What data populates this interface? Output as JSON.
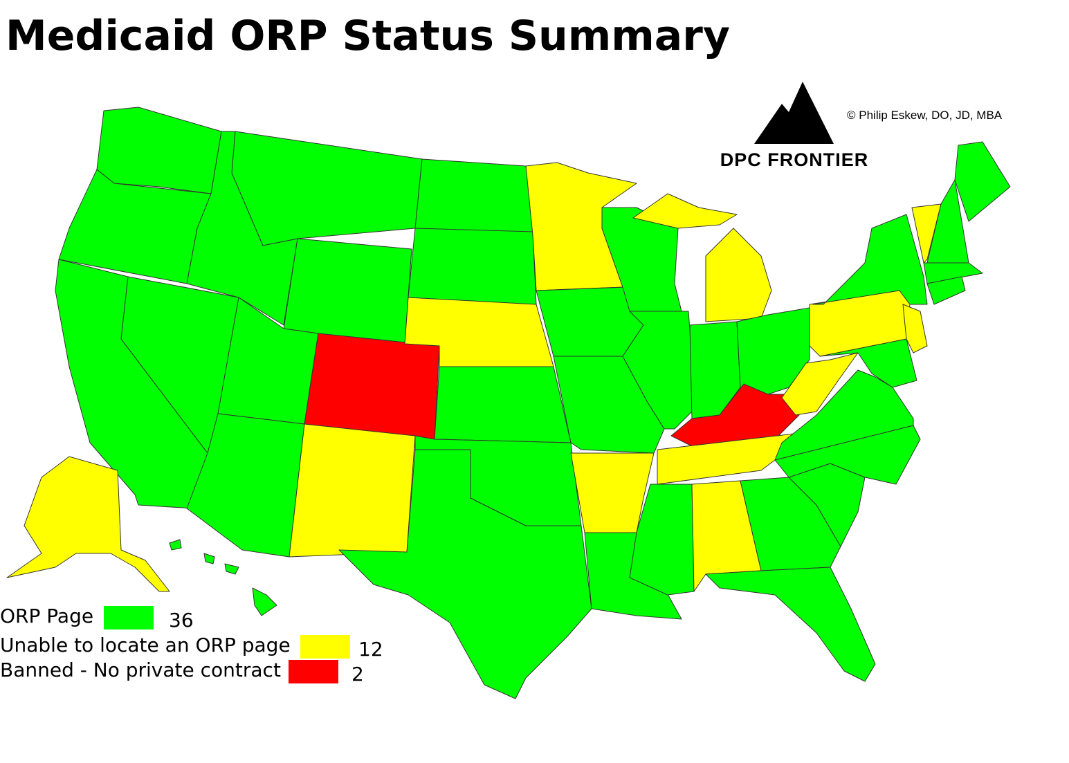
{
  "header": {
    "title": "Medicaid ORP Status Summary",
    "copyright": "© Philip Eskew, DO, JD, MBA",
    "logo_text": "DPC FRONTIER"
  },
  "legend": [
    {
      "label": "ORP Page",
      "color": "#00ff00",
      "count": 36
    },
    {
      "label": "Unable to locate an ORP page",
      "color": "#ffff00",
      "count": 12
    },
    {
      "label": "Banned - No private contract",
      "color": "#ff0000",
      "count": 2
    }
  ]
}
